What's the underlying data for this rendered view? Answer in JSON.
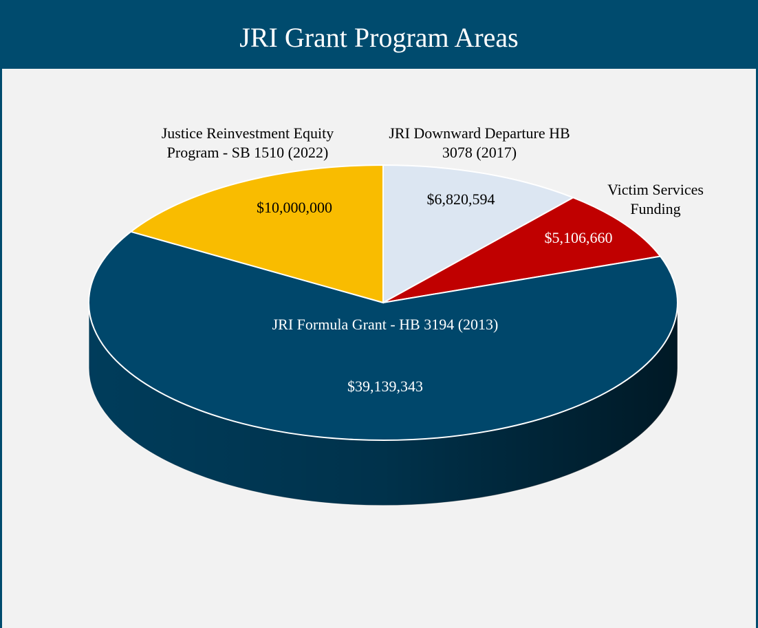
{
  "chart_data": {
    "type": "pie3d",
    "title": "JRI Grant Program Areas",
    "categories": [
      "JRI Downward Departure HB 3078 (2017)",
      "Victim Services Funding",
      "JRI Formula Grant - HB 3194 (2013)",
      "Justice Reinvestment Equity Program - SB 1510 (2022)"
    ],
    "values": [
      6820594,
      5106660,
      39139343,
      10000000
    ],
    "value_labels": [
      "$6,820,594",
      "$5,106,660",
      "$39,139,343",
      "$10,000,000"
    ],
    "colors": [
      "#dce6f2",
      "#c00000",
      "#00476b",
      "#f9bc00"
    ]
  }
}
